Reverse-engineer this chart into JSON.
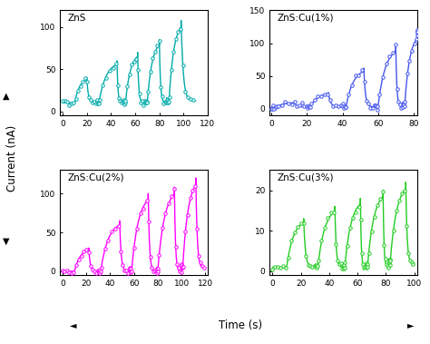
{
  "subplots": [
    {
      "label": "ZnS",
      "color": "#00AAAA",
      "xlim": [
        -2,
        120
      ],
      "ylim": [
        -5,
        120
      ],
      "xticks": [
        0,
        20,
        40,
        60,
        80,
        100,
        120
      ],
      "yticks": [
        0,
        50,
        100
      ],
      "pulses": [
        {
          "t_start": 0,
          "t_on": 10,
          "t_off": 20,
          "t_end": 28,
          "baseline": 10,
          "peak": 40
        },
        {
          "t_start": 28,
          "t_on": 30,
          "t_off": 45,
          "t_end": 50,
          "baseline": 10,
          "peak": 60
        },
        {
          "t_start": 50,
          "t_on": 52,
          "t_off": 62,
          "t_end": 68,
          "baseline": 10,
          "peak": 70
        },
        {
          "t_start": 68,
          "t_on": 70,
          "t_off": 80,
          "t_end": 86,
          "baseline": 10,
          "peak": 85
        },
        {
          "t_start": 86,
          "t_on": 88,
          "t_off": 98,
          "t_end": 110,
          "baseline": 12,
          "peak": 108
        }
      ]
    },
    {
      "label": "ZnS:Cu(1%)",
      "color": "#4455EE",
      "xlim": [
        -1,
        82
      ],
      "ylim": [
        -10,
        150
      ],
      "xticks": [
        0,
        20,
        40,
        60,
        80
      ],
      "yticks": [
        0,
        50,
        100,
        150
      ],
      "pulses": [
        {
          "t_start": 0,
          "t_on": 3,
          "t_off": 13,
          "t_end": 20,
          "baseline": 3,
          "peak": 10
        },
        {
          "t_start": 20,
          "t_on": 22,
          "t_off": 32,
          "t_end": 40,
          "baseline": 3,
          "peak": 25
        },
        {
          "t_start": 40,
          "t_on": 42,
          "t_off": 52,
          "t_end": 58,
          "baseline": 3,
          "peak": 62
        },
        {
          "t_start": 58,
          "t_on": 60,
          "t_off": 70,
          "t_end": 74,
          "baseline": 3,
          "peak": 95
        },
        {
          "t_start": 74,
          "t_on": 75,
          "t_off": 82,
          "t_end": 82,
          "baseline": 5,
          "peak": 116
        }
      ]
    },
    {
      "label": "ZnS:Cu(2%)",
      "color": "#FF00FF",
      "xlim": [
        -2,
        122
      ],
      "ylim": [
        -5,
        130
      ],
      "xticks": [
        0,
        20,
        40,
        60,
        80,
        100,
        120
      ],
      "yticks": [
        0,
        50,
        100
      ],
      "pulses": [
        {
          "t_start": 0,
          "t_on": 10,
          "t_off": 22,
          "t_end": 30,
          "baseline": 0,
          "peak": 30
        },
        {
          "t_start": 30,
          "t_on": 32,
          "t_off": 48,
          "t_end": 56,
          "baseline": 0,
          "peak": 65
        },
        {
          "t_start": 56,
          "t_on": 58,
          "t_off": 72,
          "t_end": 79,
          "baseline": 0,
          "peak": 100
        },
        {
          "t_start": 79,
          "t_on": 80,
          "t_off": 94,
          "t_end": 100,
          "baseline": 0,
          "peak": 108
        },
        {
          "t_start": 100,
          "t_on": 101,
          "t_off": 112,
          "t_end": 120,
          "baseline": 4,
          "peak": 120
        }
      ]
    },
    {
      "label": "ZnS:Cu(3%)",
      "color": "#22CC22",
      "xlim": [
        -2,
        102
      ],
      "ylim": [
        -1,
        25
      ],
      "xticks": [
        0,
        20,
        40,
        60,
        80,
        100
      ],
      "yticks": [
        0,
        10,
        20
      ],
      "pulses": [
        {
          "t_start": 0,
          "t_on": 10,
          "t_off": 22,
          "t_end": 30,
          "baseline": 1,
          "peak": 13
        },
        {
          "t_start": 30,
          "t_on": 32,
          "t_off": 44,
          "t_end": 50,
          "baseline": 1,
          "peak": 16
        },
        {
          "t_start": 50,
          "t_on": 51,
          "t_off": 62,
          "t_end": 66,
          "baseline": 1,
          "peak": 18
        },
        {
          "t_start": 66,
          "t_on": 67,
          "t_off": 78,
          "t_end": 82,
          "baseline": 1,
          "peak": 20
        },
        {
          "t_start": 82,
          "t_on": 83,
          "t_off": 94,
          "t_end": 100,
          "baseline": 2,
          "peak": 22
        }
      ]
    }
  ],
  "ylabel": "Current (nA)",
  "xlabel": "Time (s)",
  "bg_color": "#ffffff",
  "linewidth": 1.0,
  "markersize": 2.5
}
